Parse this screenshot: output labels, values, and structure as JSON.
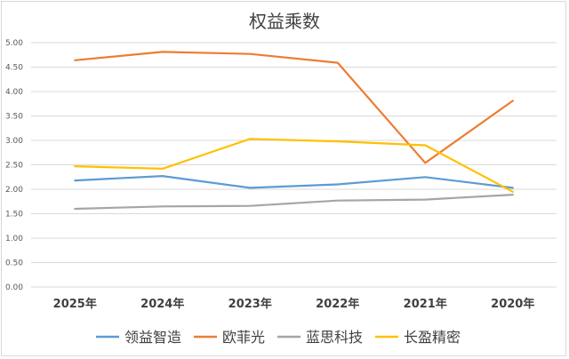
{
  "chart_data": {
    "type": "line",
    "title": "权益乘数",
    "xlabel": "",
    "ylabel": "",
    "categories": [
      "2025年",
      "2024年",
      "2023年",
      "2022年",
      "2021年",
      "2020年"
    ],
    "ylim": [
      0,
      5
    ],
    "yticks": [
      "0.00",
      "0.50",
      "1.00",
      "1.50",
      "2.00",
      "2.50",
      "3.00",
      "3.50",
      "4.00",
      "4.50",
      "5.00"
    ],
    "grid": true,
    "legend": "bottom",
    "series": [
      {
        "name": "领益智造",
        "color": "#5b9bd5",
        "values": [
          2.18,
          2.27,
          2.03,
          2.1,
          2.25,
          2.03
        ]
      },
      {
        "name": "欧菲光",
        "color": "#ed7d31",
        "values": [
          4.64,
          4.81,
          4.77,
          4.59,
          2.54,
          3.81
        ]
      },
      {
        "name": "蓝思科技",
        "color": "#a5a5a5",
        "values": [
          1.6,
          1.65,
          1.66,
          1.77,
          1.79,
          1.89
        ]
      },
      {
        "name": "长盈精密",
        "color": "#ffc000",
        "values": [
          2.47,
          2.42,
          3.03,
          2.98,
          2.9,
          1.95
        ]
      }
    ]
  }
}
